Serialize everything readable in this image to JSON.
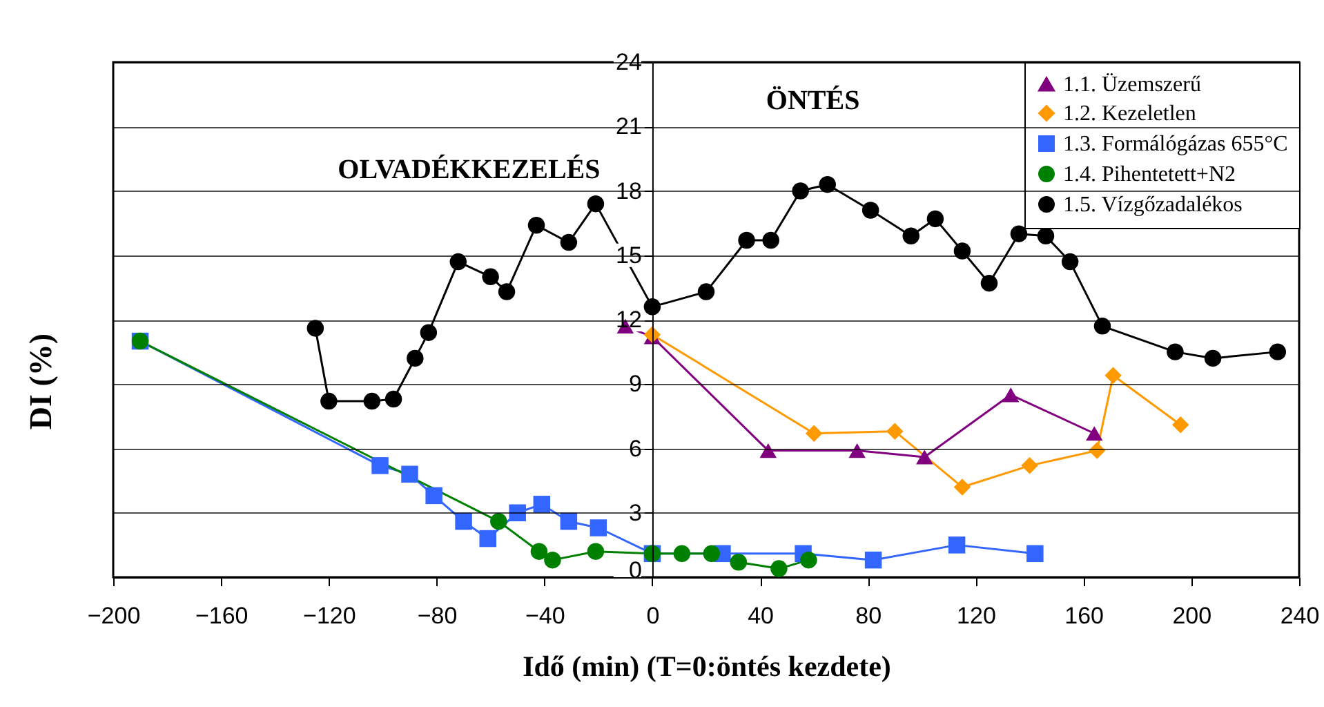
{
  "chart_data": {
    "type": "line",
    "xlabel": "Idő (min) (T=0:öntés kezdete)",
    "ylabel": "DI (%)",
    "xlim": [
      -200,
      240
    ],
    "xticks": [
      -200,
      -160,
      -120,
      -80,
      -40,
      0,
      40,
      80,
      120,
      160,
      200,
      240
    ],
    "ylim": [
      0,
      24
    ],
    "yticks": [
      0,
      3,
      6,
      9,
      12,
      15,
      18,
      21,
      24
    ],
    "grid": "y",
    "legend": "top right",
    "annotations": [
      "OLVADÉKKEZELÉS",
      "ÖNTÉS"
    ],
    "series": [
      {
        "name": "1.1. Üzemszerű",
        "color": "#800080",
        "marker": "triangle",
        "x": [
          -10,
          0,
          43,
          76,
          101,
          133,
          164
        ],
        "values": [
          11.7,
          11.2,
          5.9,
          5.9,
          5.6,
          8.5,
          6.7
        ]
      },
      {
        "name": "1.2. Kezeletlen",
        "color": "#ff9900",
        "marker": "diamond",
        "x": [
          0,
          60,
          90,
          115,
          140,
          165,
          171,
          196
        ],
        "values": [
          11.3,
          6.7,
          6.8,
          4.2,
          5.2,
          5.9,
          9.4,
          7.1
        ]
      },
      {
        "name": "1.3. Formálógázas 655°C",
        "color": "#3366ff",
        "marker": "square",
        "x": [
          -190,
          -101,
          -90,
          -81,
          -70,
          -61,
          -50,
          -41,
          -31,
          -20,
          0,
          26,
          56,
          82,
          113,
          142
        ],
        "values": [
          11.0,
          5.2,
          4.8,
          3.8,
          2.6,
          1.8,
          3.0,
          3.4,
          2.6,
          2.3,
          1.1,
          1.1,
          1.1,
          0.8,
          1.5,
          1.1
        ]
      },
      {
        "name": "1.4. Pihentetett+N2",
        "color": "#008000",
        "marker": "circle",
        "x": [
          -190,
          -57,
          -42,
          -37,
          -21,
          0,
          11,
          22,
          32,
          47,
          58
        ],
        "values": [
          11.0,
          2.6,
          1.2,
          0.8,
          1.2,
          1.1,
          1.1,
          1.1,
          0.7,
          0.4,
          0.8
        ]
      },
      {
        "name": "1.5. Vízgőzadalékos",
        "color": "#000000",
        "marker": "circle",
        "x": [
          -125,
          -120,
          -104,
          -96,
          -88,
          -83,
          -72,
          -60,
          -54,
          -43,
          -31,
          -21,
          0,
          20,
          35,
          44,
          55,
          65,
          81,
          96,
          105,
          115,
          125,
          136,
          146,
          155,
          167,
          194,
          208,
          232
        ],
        "values": [
          11.6,
          8.2,
          8.2,
          8.3,
          10.2,
          11.4,
          14.7,
          14.0,
          13.3,
          16.4,
          15.6,
          17.4,
          12.6,
          13.3,
          15.7,
          15.7,
          18.0,
          18.3,
          17.1,
          15.9,
          16.7,
          15.2,
          13.7,
          16.0,
          15.9,
          14.7,
          11.7,
          10.5,
          10.2,
          10.5
        ]
      }
    ]
  }
}
